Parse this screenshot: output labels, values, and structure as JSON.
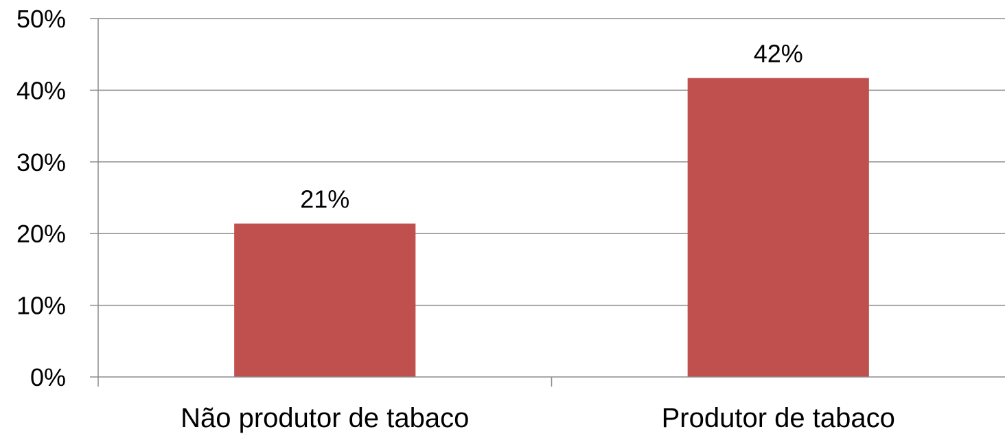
{
  "chart_data": {
    "type": "bar",
    "title": "",
    "xlabel": "",
    "ylabel": "",
    "categories": [
      "Não produtor de tabaco",
      "Produtor de tabaco"
    ],
    "values": [
      0.214,
      0.417
    ],
    "data_labels": [
      "21%",
      "42%"
    ],
    "ylim": [
      0,
      0.5
    ],
    "y_ticks": [
      0,
      0.1,
      0.2,
      0.3,
      0.4,
      0.5
    ],
    "y_tick_labels": [
      "0%",
      "10%",
      "20%",
      "30%",
      "40%",
      "50%"
    ],
    "grid": true,
    "legend": "none",
    "bar_color": "#c0504d",
    "grid_color": "#8c8c8c"
  }
}
